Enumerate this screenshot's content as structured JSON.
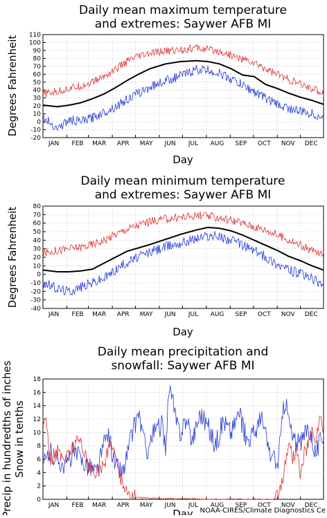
{
  "months": [
    "JAN",
    "FEB",
    "MAR",
    "APR",
    "MAY",
    "JUN",
    "JUL",
    "AUG",
    "SEP",
    "OCT",
    "NOV",
    "DEC"
  ],
  "credit": "NOAA-CIRES/Climate Diagnostics Ce",
  "colors": {
    "mean": "#000000",
    "high": "#e03030",
    "low": "#1f36d6",
    "grid": "#9a9a9a"
  },
  "chart_data": [
    {
      "type": "line",
      "title_line1": "Daily mean maximum temperature",
      "title_line2": "and extremes: Saywer AFB MI",
      "xlabel": "Day",
      "ylabel": "Degrees Fahrenheit",
      "ylim": [
        -20,
        110
      ],
      "yticks": [
        -20,
        -10,
        0,
        10,
        20,
        30,
        40,
        50,
        60,
        70,
        80,
        90,
        100,
        110
      ],
      "x_unit": "day of year (1-365)",
      "grid": true,
      "series": [
        {
          "role": "mean",
          "x": [
            1,
            20,
            35,
            50,
            65,
            80,
            95,
            110,
            125,
            140,
            160,
            180,
            200,
            215,
            230,
            245,
            260,
            275,
            290,
            305,
            320,
            335,
            350,
            365
          ],
          "values": [
            21,
            19,
            21,
            24,
            29,
            35,
            43,
            52,
            60,
            67,
            73,
            76,
            77,
            76,
            73,
            67,
            59,
            57,
            47,
            42,
            36,
            31,
            27,
            22
          ]
        },
        {
          "role": "high",
          "x": [
            1,
            20,
            35,
            50,
            65,
            80,
            95,
            110,
            125,
            140,
            160,
            180,
            200,
            215,
            230,
            245,
            260,
            275,
            290,
            305,
            320,
            335,
            350,
            365
          ],
          "values": [
            35,
            38,
            42,
            45,
            50,
            57,
            66,
            76,
            82,
            86,
            89,
            91,
            93,
            91,
            89,
            84,
            79,
            74,
            67,
            60,
            53,
            47,
            42,
            36
          ]
        },
        {
          "role": "low",
          "x": [
            1,
            20,
            35,
            50,
            65,
            80,
            95,
            110,
            125,
            140,
            160,
            180,
            200,
            215,
            230,
            245,
            260,
            275,
            290,
            305,
            320,
            335,
            350,
            365
          ],
          "values": [
            5,
            -8,
            2,
            0,
            5,
            12,
            19,
            28,
            36,
            44,
            52,
            58,
            66,
            65,
            61,
            54,
            46,
            38,
            30,
            22,
            17,
            13,
            10,
            5
          ]
        }
      ]
    },
    {
      "type": "line",
      "title_line1": "Daily mean minimum temperature",
      "title_line2": "and extremes: Saywer AFB MI",
      "xlabel": "Day",
      "ylabel": "Degrees Fahrenheit",
      "ylim": [
        -40,
        80
      ],
      "yticks": [
        -40,
        -30,
        -20,
        -10,
        0,
        10,
        20,
        30,
        40,
        50,
        60,
        70,
        80
      ],
      "x_unit": "day of year (1-365)",
      "grid": true,
      "series": [
        {
          "role": "mean",
          "x": [
            1,
            20,
            35,
            50,
            65,
            80,
            95,
            110,
            125,
            140,
            160,
            180,
            200,
            215,
            230,
            245,
            260,
            275,
            290,
            305,
            320,
            335,
            350,
            365
          ],
          "values": [
            5,
            3,
            3,
            4,
            6,
            13,
            20,
            27,
            31,
            35,
            41,
            47,
            52,
            55,
            54,
            51,
            46,
            40,
            34,
            28,
            21,
            16,
            10,
            5
          ]
        },
        {
          "role": "high",
          "x": [
            1,
            20,
            35,
            50,
            65,
            80,
            95,
            110,
            125,
            140,
            160,
            180,
            200,
            215,
            230,
            245,
            260,
            275,
            290,
            305,
            320,
            335,
            350,
            365
          ],
          "values": [
            25,
            28,
            30,
            32,
            35,
            40,
            47,
            53,
            58,
            62,
            65,
            67,
            69,
            68,
            66,
            64,
            60,
            56,
            52,
            46,
            40,
            34,
            28,
            22
          ]
        },
        {
          "role": "low",
          "x": [
            1,
            20,
            35,
            50,
            65,
            80,
            95,
            110,
            125,
            140,
            160,
            180,
            200,
            215,
            230,
            245,
            260,
            275,
            290,
            305,
            320,
            335,
            350,
            365
          ],
          "values": [
            -10,
            -17,
            -20,
            -15,
            -10,
            -5,
            5,
            14,
            20,
            26,
            32,
            37,
            42,
            45,
            44,
            40,
            34,
            28,
            20,
            12,
            5,
            0,
            -5,
            -12
          ]
        }
      ]
    },
    {
      "type": "line",
      "title_line1": "Daily mean precipitation and",
      "title_line2": "snowfall: Saywer AFB MI",
      "xlabel": "Day",
      "ylabel_line1": "Precip in hundredths of inches",
      "ylabel_line2": "Snow in tenths",
      "ylim": [
        0,
        18
      ],
      "yticks": [
        0,
        2,
        4,
        6,
        8,
        10,
        12,
        14,
        16,
        18
      ],
      "x_unit": "day of year (1-365)",
      "grid": true,
      "series": [
        {
          "role": "precip",
          "x": [
            1,
            10,
            20,
            30,
            40,
            50,
            60,
            70,
            80,
            85,
            95,
            105,
            115,
            125,
            135,
            145,
            155,
            160,
            165,
            175,
            180,
            185,
            195,
            205,
            215,
            225,
            235,
            245,
            255,
            265,
            275,
            285,
            295,
            305,
            315,
            325,
            335,
            345,
            355,
            365
          ],
          "values": [
            5,
            7,
            6,
            5,
            7,
            6,
            5,
            4,
            8,
            10,
            5,
            4,
            9,
            13,
            7,
            10,
            11,
            8,
            17,
            11,
            10,
            12,
            9,
            13,
            11,
            8,
            12,
            10,
            13,
            9,
            10,
            12,
            7,
            5,
            15,
            9,
            8,
            11,
            7,
            10
          ]
        },
        {
          "role": "snow",
          "x": [
            1,
            5,
            10,
            20,
            30,
            40,
            50,
            60,
            70,
            80,
            90,
            100,
            110,
            120,
            140,
            160,
            180,
            200,
            220,
            240,
            260,
            280,
            290,
            300,
            305,
            310,
            315,
            320,
            325,
            330,
            335,
            340,
            345,
            350,
            355,
            360,
            365
          ],
          "values": [
            11,
            13,
            6,
            7,
            6,
            8,
            9,
            5,
            4,
            5,
            9,
            4,
            1,
            0.3,
            0.2,
            0.1,
            0.1,
            0.1,
            0,
            0,
            0,
            0,
            0,
            0,
            0.5,
            2,
            5,
            9,
            6,
            8,
            3,
            7,
            8,
            10,
            9,
            12,
            10
          ]
        }
      ]
    }
  ]
}
